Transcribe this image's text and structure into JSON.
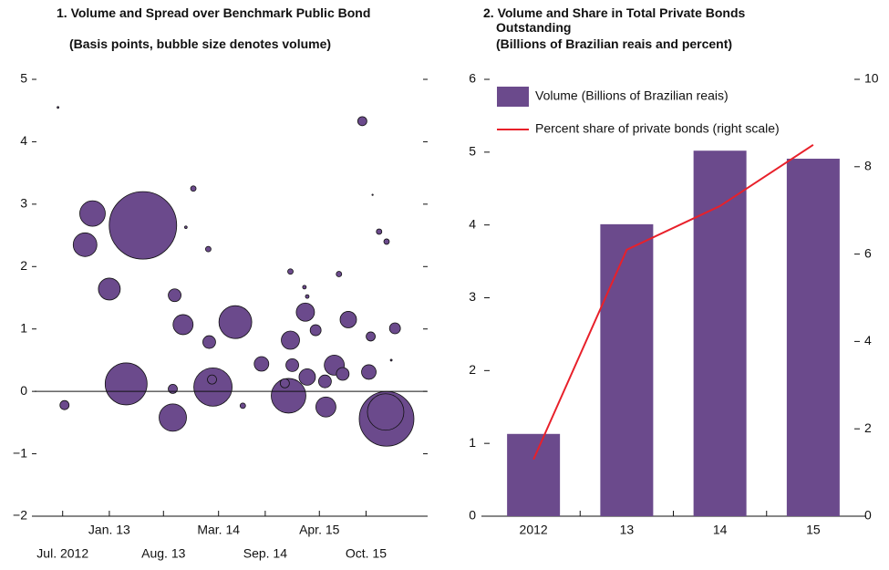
{
  "chart_data": [
    {
      "type": "bubble",
      "title": "1. Volume and Spread over Benchmark Public Bond",
      "subtitle": "(Basis points, bubble size denotes volume)",
      "color": "#6b4a8c",
      "x": [
        2012.45,
        2012.52,
        2012.82,
        2012.74,
        2013.0,
        2013.36,
        2013.18,
        2013.68,
        2013.68,
        2013.7,
        2013.79,
        2013.9,
        2013.82,
        2014.06,
        2014.11,
        2014.1,
        2014.07,
        2014.35,
        2014.43,
        2014.63,
        2014.92,
        2014.88,
        2014.94,
        2014.96,
        2014.94,
        2015.09,
        2015.12,
        2015.1,
        2015.21,
        2015.12,
        2015.32,
        2015.31,
        2015.41,
        2015.5,
        2015.46,
        2015.56,
        2015.71,
        2015.78,
        2015.8,
        2015.89,
        2015.97,
        2015.97,
        2016.06,
        2016.02,
        2015.82,
        2015.96
      ],
      "values": [
        4.55,
        -0.22,
        2.85,
        2.35,
        1.64,
        2.66,
        0.12,
        0.04,
        -0.42,
        1.54,
        1.07,
        3.25,
        2.63,
        2.28,
        0.07,
        0.19,
        0.79,
        1.11,
        -0.23,
        0.44,
        -0.07,
        0.13,
        0.82,
        0.42,
        1.92,
        1.67,
        1.52,
        1.27,
        0.98,
        0.23,
        -0.25,
        0.16,
        0.42,
        0.28,
        1.88,
        1.15,
        4.33,
        0.31,
        0.88,
        2.56,
        2.4,
        -0.44,
        1.01,
        0.5,
        3.15,
        -0.33
      ],
      "sizes": [
        1,
        25,
        196,
        169,
        144,
        1369,
        529,
        25,
        225,
        49,
        121,
        9,
        2,
        9,
        441,
        25,
        49,
        324,
        9,
        64,
        361,
        25,
        100,
        49,
        9,
        4,
        4,
        100,
        36,
        81,
        121,
        49,
        121,
        49,
        9,
        81,
        25,
        64,
        25,
        9,
        9,
        900,
        36,
        1,
        0.5,
        400
      ],
      "xlim": [
        2012.2,
        2016.4
      ],
      "xticks": [
        {
          "value": 2012.5,
          "label": "Jul. 2012"
        },
        {
          "value": 2013.0,
          "label": "Jan. 13"
        },
        {
          "value": 2013.58,
          "label": "Aug. 13"
        },
        {
          "value": 2014.17,
          "label": "Mar. 14"
        },
        {
          "value": 2014.67,
          "label": "Sep. 14"
        },
        {
          "value": 2015.25,
          "label": "Apr. 15"
        },
        {
          "value": 2015.75,
          "label": "Oct. 15"
        }
      ],
      "ylim": [
        -2,
        5
      ],
      "yticks": [
        {
          "value": -2,
          "label": "−2"
        },
        {
          "value": -1,
          "label": "−1"
        },
        0,
        1,
        2,
        3,
        4,
        5
      ]
    },
    {
      "type": "bar",
      "title": "2. Volume and Share in Total Private Bonds Outstanding",
      "subtitle": "(Billions of Brazilian reais and percent)",
      "categories": [
        "2012",
        "13",
        "14",
        "15"
      ],
      "series": [
        {
          "name": "Volume (Billions of Brazilian reais)",
          "color": "#6b4a8c",
          "values": [
            1.13,
            4.01,
            5.02,
            4.91
          ]
        },
        {
          "name": "Percent share of private bonds (right scale)",
          "color": "#e8202a",
          "values": [
            1.3,
            6.1,
            7.1,
            8.5
          ],
          "axis": "y2",
          "type": "line"
        }
      ],
      "ylim": [
        0,
        6
      ],
      "yticks": [
        0,
        1,
        2,
        3,
        4,
        5,
        6
      ],
      "y2lim": [
        0,
        10
      ],
      "y2ticks": [
        0,
        2,
        4,
        6,
        8,
        10
      ],
      "legend": "top-left"
    }
  ]
}
